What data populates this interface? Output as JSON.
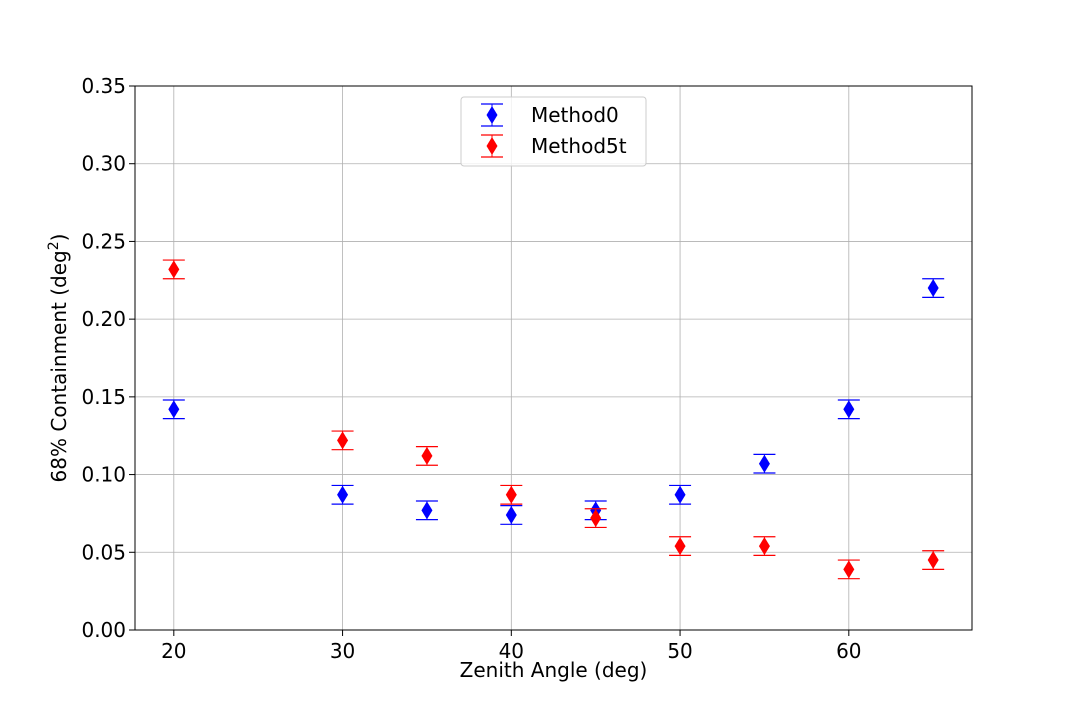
{
  "chart_data": {
    "type": "scatter",
    "xlabel": "Zenith Angle (deg)",
    "ylabel_main": "68% Containment (deg",
    "ylabel_sup": "2",
    "ylabel_close": ")",
    "xlim": [
      17.7,
      67.3
    ],
    "ylim": [
      0.0,
      0.35
    ],
    "xticks": [
      20,
      30,
      40,
      50,
      60
    ],
    "yticks": [
      0.0,
      0.05,
      0.1,
      0.15,
      0.2,
      0.25,
      0.3,
      0.35
    ],
    "ytick_labels": [
      "0.00",
      "0.05",
      "0.10",
      "0.15",
      "0.20",
      "0.25",
      "0.30",
      "0.35"
    ],
    "grid": true,
    "legend_position": "upper center",
    "series": [
      {
        "name": "Method0",
        "color": "#0000ff",
        "marker": "thin-diamond",
        "x": [
          20,
          30,
          35,
          40,
          45,
          50,
          55,
          60,
          65
        ],
        "y": [
          0.142,
          0.087,
          0.077,
          0.074,
          0.077,
          0.087,
          0.107,
          0.142,
          0.22
        ],
        "err": [
          0.006,
          0.006,
          0.006,
          0.006,
          0.006,
          0.006,
          0.006,
          0.006,
          0.006
        ]
      },
      {
        "name": "Method5t",
        "color": "#ff0000",
        "marker": "thin-diamond",
        "x": [
          20,
          30,
          35,
          40,
          45,
          50,
          55,
          60,
          65
        ],
        "y": [
          0.232,
          0.122,
          0.112,
          0.087,
          0.072,
          0.054,
          0.054,
          0.039,
          0.045
        ],
        "err": [
          0.006,
          0.006,
          0.006,
          0.006,
          0.006,
          0.006,
          0.006,
          0.006,
          0.006
        ]
      }
    ]
  }
}
